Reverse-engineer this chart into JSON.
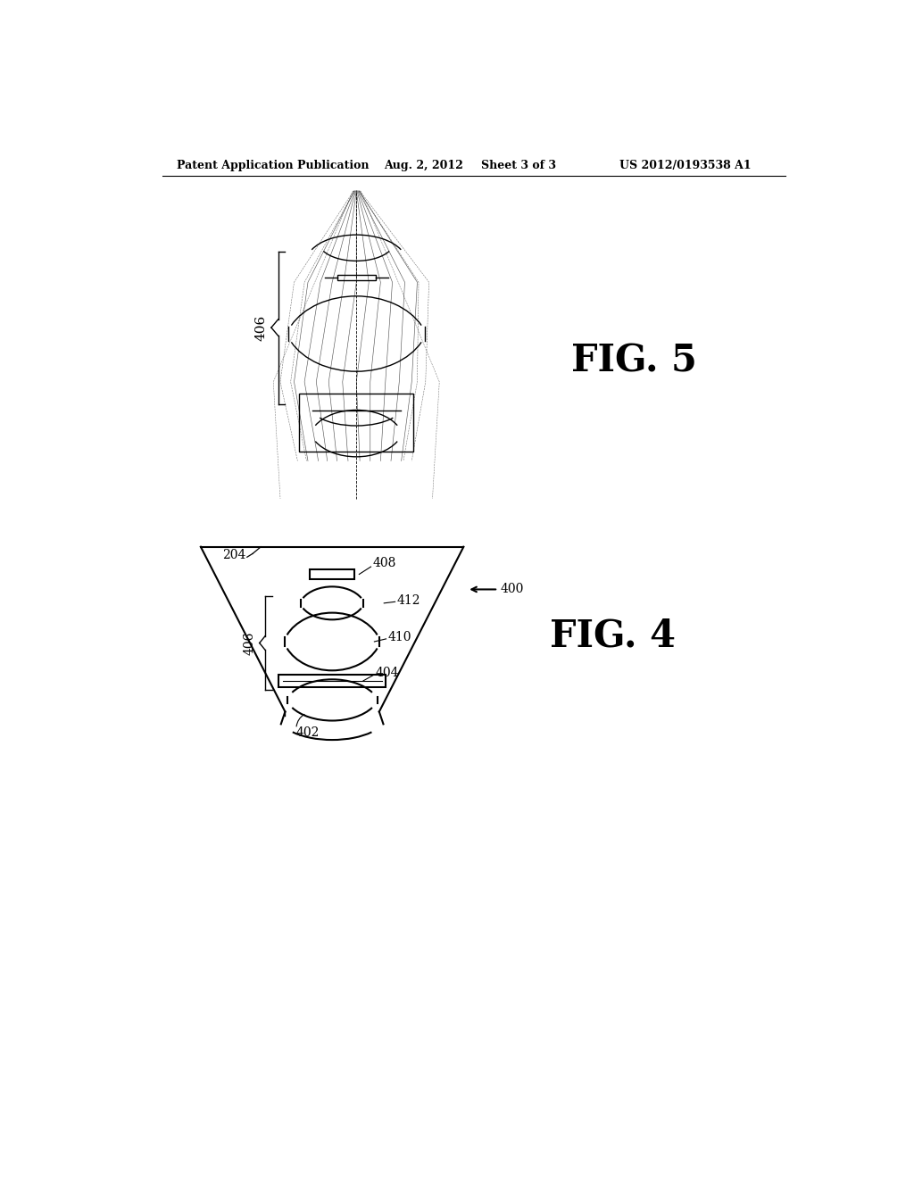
{
  "bg_color": "#ffffff",
  "line_color": "#000000",
  "gray_color": "#555555",
  "light_gray": "#aaaaaa",
  "header_text": "Patent Application Publication",
  "header_date": "Aug. 2, 2012",
  "header_sheet": "Sheet 3 of 3",
  "header_patent": "US 2012/0193538 A1",
  "fig5_label": "FIG. 5",
  "fig4_label": "FIG. 4",
  "label_406_fig5": "406",
  "label_406_fig4": "406",
  "label_204": "204",
  "label_400": "400",
  "label_402": "402",
  "label_404": "404",
  "label_408": "408",
  "label_410": "410",
  "label_412": "412"
}
